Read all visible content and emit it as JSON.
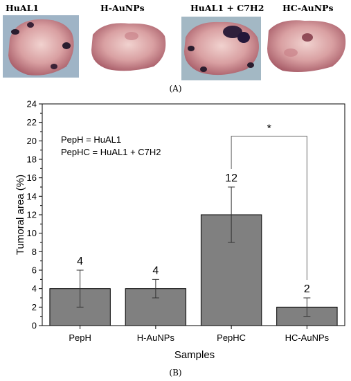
{
  "panel_a": {
    "titles": [
      "HuAL1",
      "H-AuNPs",
      "HuAL1 + C7H2",
      "HC-AuNPs"
    ],
    "label": "(A)"
  },
  "panel_b": {
    "label": "(B)"
  },
  "chart_data": {
    "type": "bar",
    "categories": [
      "PepH",
      "H-AuNPs",
      "PepHC",
      "HC-AuNPs"
    ],
    "values": [
      4,
      4,
      12,
      2
    ],
    "errors": [
      2,
      1,
      3,
      1
    ],
    "data_labels": [
      "4",
      "4",
      "12",
      "2"
    ],
    "xlabel": "Samples",
    "ylabel": "Tumoral area (%)",
    "ylim": [
      0,
      24
    ],
    "yticks": [
      0,
      2,
      4,
      6,
      8,
      10,
      12,
      14,
      16,
      18,
      20,
      22,
      24
    ],
    "bar_color": "#808080",
    "annotations": [
      "PepH = HuAL1",
      "PepHC = HuAL1 + C7H2"
    ],
    "significance": {
      "from": "PepHC",
      "to": "HC-AuNPs",
      "label": "*"
    }
  }
}
